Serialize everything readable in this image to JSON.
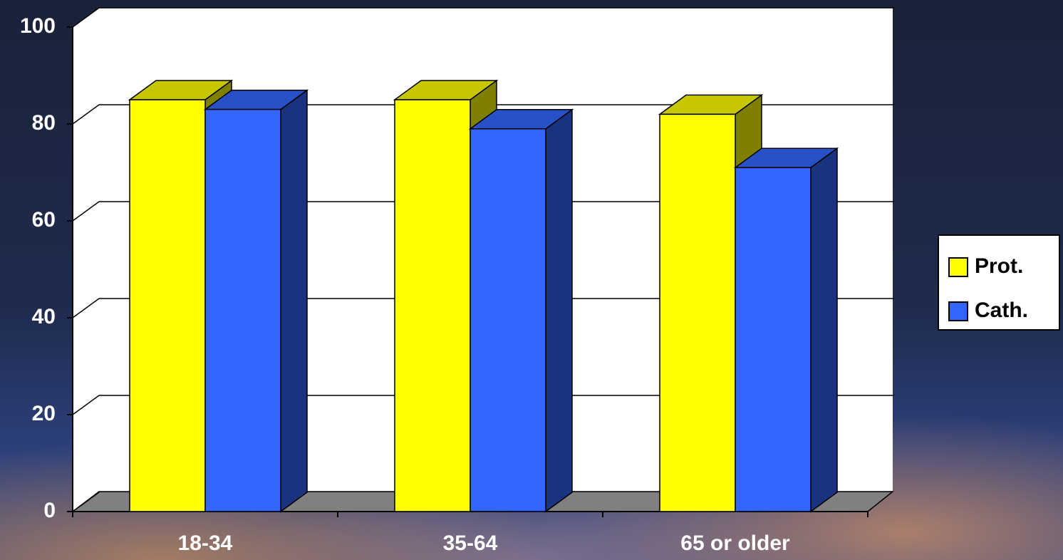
{
  "chart_data": {
    "type": "bar3d",
    "categories": [
      "18-34",
      "35-64",
      "65 or older"
    ],
    "series": [
      {
        "name": "Prot.",
        "color": "#ffff00",
        "values": [
          85,
          85,
          82
        ]
      },
      {
        "name": "Cath.",
        "color": "#3366ff",
        "values": [
          83,
          79,
          71
        ]
      }
    ],
    "ylim": [
      0,
      100
    ],
    "yticks": [
      0,
      20,
      40,
      60,
      80,
      100
    ],
    "grid": true,
    "legend": "right"
  }
}
